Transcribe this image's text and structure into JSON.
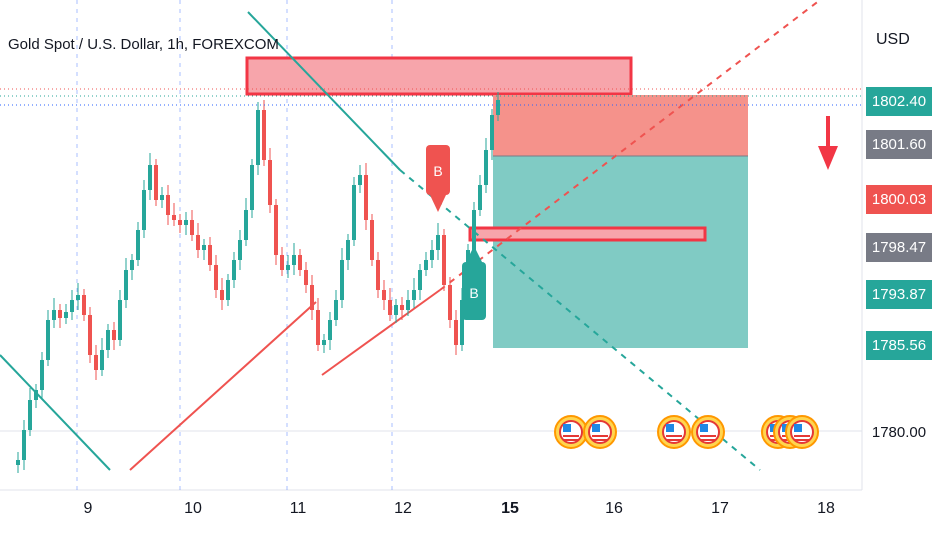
{
  "header": {
    "title": "Gold Spot / U.S. Dollar, 1h, FOREXCOM"
  },
  "price_axis": {
    "currency": "USD",
    "tags": [
      {
        "label": "1802.40",
        "color": "#26a69a"
      },
      {
        "label": "1801.60",
        "color": "#787b86"
      },
      {
        "label": "1800.03",
        "color": "#ef5350"
      },
      {
        "label": "1798.47",
        "color": "#787b86"
      },
      {
        "label": "1793.87",
        "color": "#26a69a"
      },
      {
        "label": "1785.56",
        "color": "#26a69a"
      }
    ],
    "plain_label": "1780.00"
  },
  "time_axis": {
    "labels": [
      "9",
      "10",
      "11",
      "12",
      "15",
      "16",
      "17",
      "18"
    ],
    "bold_label": "15"
  },
  "markers": {
    "buy_top": "B",
    "buy_bottom": "B"
  },
  "colors": {
    "up": "#26a69a",
    "down": "#ef5350",
    "supply_zone": "#f7a5ab",
    "stop_zone": "#f5928b",
    "target_zone": "#80cbc4",
    "zone_border": "#f23645"
  },
  "chart_data": {
    "type": "candlestick",
    "title": "Gold Spot / U.S. Dollar, 1h, FOREXCOM",
    "symbol": "XAUUSD",
    "timeframe": "1h",
    "ylim": [
      1776.5,
      1808
    ],
    "x_ticks": [
      "9",
      "10",
      "11",
      "12",
      "15",
      "16",
      "17",
      "18"
    ],
    "y_ticks": [
      1780.0,
      1785.56,
      1793.87,
      1798.47,
      1800.03,
      1801.6,
      1802.4
    ],
    "annotations": [
      "Supply zone near 1803.5",
      "Long position: entry 1798.47, stop 1801.60, target 1785.56",
      "Buy markers labelled B",
      "Down arrow at right"
    ]
  }
}
